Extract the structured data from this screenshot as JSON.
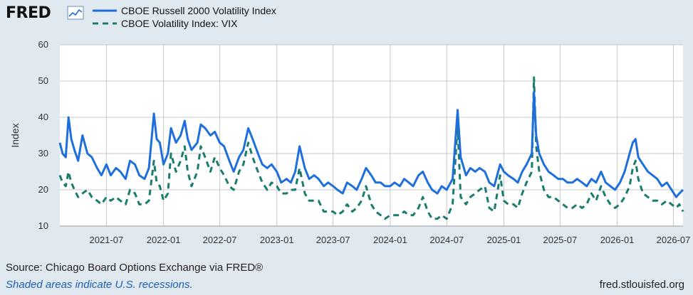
{
  "header": {
    "logo_text": "FRED",
    "logo_mark_icon": "fred-line-chart-icon"
  },
  "footer": {
    "source": "Source: Chicago Board Options Exchange via FRED®",
    "note": "Shaded areas indicate U.S. recessions.",
    "url": "fred.stlouisfed.org"
  },
  "chart_data": {
    "type": "line",
    "title": "",
    "xlabel": "",
    "ylabel": "Index",
    "ylim": [
      10,
      60
    ],
    "yticks": [
      10,
      20,
      30,
      40,
      50,
      60
    ],
    "xlim": [
      "2021-02-01",
      "2026-08-01"
    ],
    "xticks": [
      "2021-07",
      "2022-01",
      "2022-07",
      "2023-01",
      "2023-07",
      "2024-01",
      "2024-07",
      "2025-01",
      "2025-07",
      "2026-01",
      "2026-07"
    ],
    "grid": true,
    "legend_position": "top-left",
    "background": "#ffffff",
    "series": [
      {
        "name": "CBOE Russell 2000 Volatility Index",
        "color": "#1e6fdc",
        "style": "solid",
        "points": [
          [
            "2021-02-01",
            33
          ],
          [
            "2021-02-10",
            30
          ],
          [
            "2021-02-20",
            29
          ],
          [
            "2021-03-01",
            40
          ],
          [
            "2021-03-10",
            34
          ],
          [
            "2021-03-20",
            31
          ],
          [
            "2021-04-01",
            28
          ],
          [
            "2021-04-15",
            35
          ],
          [
            "2021-05-01",
            30
          ],
          [
            "2021-05-15",
            29
          ],
          [
            "2021-06-01",
            26
          ],
          [
            "2021-06-15",
            24
          ],
          [
            "2021-07-01",
            27
          ],
          [
            "2021-07-15",
            24
          ],
          [
            "2021-08-01",
            26
          ],
          [
            "2021-08-15",
            25
          ],
          [
            "2021-09-01",
            23
          ],
          [
            "2021-09-15",
            28
          ],
          [
            "2021-10-01",
            27
          ],
          [
            "2021-10-15",
            24
          ],
          [
            "2021-11-01",
            23
          ],
          [
            "2021-11-15",
            26
          ],
          [
            "2021-12-01",
            41
          ],
          [
            "2021-12-10",
            34
          ],
          [
            "2021-12-20",
            33
          ],
          [
            "2022-01-01",
            27
          ],
          [
            "2022-01-15",
            30
          ],
          [
            "2022-01-25",
            37
          ],
          [
            "2022-02-10",
            33
          ],
          [
            "2022-02-25",
            35
          ],
          [
            "2022-03-10",
            39
          ],
          [
            "2022-03-20",
            34
          ],
          [
            "2022-04-01",
            31
          ],
          [
            "2022-04-20",
            33
          ],
          [
            "2022-05-01",
            38
          ],
          [
            "2022-05-15",
            37
          ],
          [
            "2022-06-01",
            35
          ],
          [
            "2022-06-15",
            36
          ],
          [
            "2022-07-01",
            33
          ],
          [
            "2022-07-15",
            32
          ],
          [
            "2022-08-01",
            28
          ],
          [
            "2022-08-15",
            25
          ],
          [
            "2022-09-01",
            29
          ],
          [
            "2022-09-15",
            31
          ],
          [
            "2022-10-01",
            37
          ],
          [
            "2022-10-15",
            34
          ],
          [
            "2022-11-01",
            30
          ],
          [
            "2022-11-15",
            27
          ],
          [
            "2022-12-01",
            26
          ],
          [
            "2022-12-15",
            27
          ],
          [
            "2023-01-01",
            25
          ],
          [
            "2023-01-15",
            22
          ],
          [
            "2023-02-01",
            23
          ],
          [
            "2023-02-15",
            22
          ],
          [
            "2023-03-01",
            25
          ],
          [
            "2023-03-15",
            32
          ],
          [
            "2023-04-01",
            26
          ],
          [
            "2023-04-15",
            23
          ],
          [
            "2023-05-01",
            24
          ],
          [
            "2023-05-15",
            23
          ],
          [
            "2023-06-01",
            21
          ],
          [
            "2023-06-15",
            22
          ],
          [
            "2023-07-01",
            21
          ],
          [
            "2023-07-15",
            20
          ],
          [
            "2023-08-01",
            19
          ],
          [
            "2023-08-15",
            22
          ],
          [
            "2023-09-01",
            21
          ],
          [
            "2023-09-15",
            20
          ],
          [
            "2023-10-01",
            23
          ],
          [
            "2023-10-15",
            26
          ],
          [
            "2023-11-01",
            24
          ],
          [
            "2023-11-15",
            22
          ],
          [
            "2023-12-01",
            22
          ],
          [
            "2023-12-15",
            21
          ],
          [
            "2024-01-01",
            21
          ],
          [
            "2024-01-15",
            22
          ],
          [
            "2024-02-01",
            21
          ],
          [
            "2024-02-15",
            23
          ],
          [
            "2024-03-01",
            22
          ],
          [
            "2024-03-15",
            21
          ],
          [
            "2024-04-01",
            24
          ],
          [
            "2024-04-15",
            25
          ],
          [
            "2024-05-01",
            22
          ],
          [
            "2024-05-15",
            20
          ],
          [
            "2024-06-01",
            19
          ],
          [
            "2024-06-15",
            21
          ],
          [
            "2024-07-01",
            20
          ],
          [
            "2024-07-20",
            23
          ],
          [
            "2024-08-05",
            42
          ],
          [
            "2024-08-15",
            29
          ],
          [
            "2024-09-01",
            24
          ],
          [
            "2024-09-15",
            26
          ],
          [
            "2024-10-01",
            25
          ],
          [
            "2024-10-15",
            26
          ],
          [
            "2024-11-01",
            25
          ],
          [
            "2024-11-15",
            22
          ],
          [
            "2024-12-01",
            21
          ],
          [
            "2024-12-20",
            27
          ],
          [
            "2025-01-01",
            25
          ],
          [
            "2025-01-15",
            24
          ],
          [
            "2025-02-01",
            23
          ],
          [
            "2025-02-15",
            22
          ],
          [
            "2025-03-01",
            25
          ],
          [
            "2025-03-15",
            27
          ],
          [
            "2025-04-01",
            30
          ],
          [
            "2025-04-08",
            47
          ],
          [
            "2025-04-15",
            35
          ],
          [
            "2025-04-25",
            30
          ],
          [
            "2025-05-10",
            27
          ],
          [
            "2025-05-25",
            25
          ],
          [
            "2025-06-10",
            24
          ],
          [
            "2025-06-25",
            23
          ],
          [
            "2025-07-10",
            23
          ],
          [
            "2025-07-25",
            22
          ],
          [
            "2025-08-10",
            22
          ],
          [
            "2025-08-25",
            23
          ],
          [
            "2025-09-10",
            22
          ],
          [
            "2025-09-25",
            21
          ],
          [
            "2025-10-10",
            23
          ],
          [
            "2025-10-25",
            22
          ],
          [
            "2025-11-10",
            25
          ],
          [
            "2025-11-25",
            22
          ],
          [
            "2025-12-10",
            21
          ],
          [
            "2025-12-25",
            20
          ],
          [
            "2026-01-10",
            22
          ],
          [
            "2026-01-25",
            25
          ],
          [
            "2026-02-10",
            30
          ],
          [
            "2026-02-20",
            33
          ],
          [
            "2026-03-01",
            34
          ],
          [
            "2026-03-10",
            29
          ],
          [
            "2026-03-25",
            27
          ],
          [
            "2026-04-10",
            25
          ],
          [
            "2026-04-25",
            24
          ],
          [
            "2026-05-10",
            23
          ],
          [
            "2026-05-25",
            21
          ],
          [
            "2026-06-10",
            22
          ],
          [
            "2026-06-25",
            20
          ],
          [
            "2026-07-10",
            18
          ],
          [
            "2026-07-20",
            19
          ],
          [
            "2026-08-01",
            20
          ]
        ]
      },
      {
        "name": "CBOE Volatility Index: VIX",
        "color": "#1a7d6b",
        "style": "dashed",
        "points": [
          [
            "2021-02-01",
            24
          ],
          [
            "2021-02-10",
            22
          ],
          [
            "2021-02-20",
            21
          ],
          [
            "2021-03-01",
            25
          ],
          [
            "2021-03-10",
            22
          ],
          [
            "2021-03-20",
            20
          ],
          [
            "2021-04-01",
            18
          ],
          [
            "2021-04-15",
            19
          ],
          [
            "2021-05-01",
            20
          ],
          [
            "2021-05-15",
            18
          ],
          [
            "2021-06-01",
            17
          ],
          [
            "2021-06-15",
            16
          ],
          [
            "2021-07-01",
            18
          ],
          [
            "2021-07-15",
            17
          ],
          [
            "2021-08-01",
            18
          ],
          [
            "2021-08-15",
            17
          ],
          [
            "2021-09-01",
            16
          ],
          [
            "2021-09-15",
            20
          ],
          [
            "2021-10-01",
            19
          ],
          [
            "2021-10-15",
            16
          ],
          [
            "2021-11-01",
            16
          ],
          [
            "2021-11-15",
            17
          ],
          [
            "2021-12-01",
            28
          ],
          [
            "2021-12-10",
            22
          ],
          [
            "2021-12-20",
            21
          ],
          [
            "2022-01-01",
            17
          ],
          [
            "2022-01-15",
            19
          ],
          [
            "2022-01-25",
            30
          ],
          [
            "2022-02-10",
            25
          ],
          [
            "2022-02-25",
            28
          ],
          [
            "2022-03-10",
            32
          ],
          [
            "2022-03-20",
            25
          ],
          [
            "2022-04-01",
            21
          ],
          [
            "2022-04-20",
            25
          ],
          [
            "2022-05-01",
            32
          ],
          [
            "2022-05-15",
            29
          ],
          [
            "2022-06-01",
            25
          ],
          [
            "2022-06-15",
            29
          ],
          [
            "2022-07-01",
            26
          ],
          [
            "2022-07-15",
            24
          ],
          [
            "2022-08-01",
            21
          ],
          [
            "2022-08-15",
            20
          ],
          [
            "2022-09-01",
            25
          ],
          [
            "2022-09-15",
            27
          ],
          [
            "2022-10-01",
            33
          ],
          [
            "2022-10-15",
            29
          ],
          [
            "2022-11-01",
            25
          ],
          [
            "2022-11-15",
            22
          ],
          [
            "2022-12-01",
            20
          ],
          [
            "2022-12-15",
            22
          ],
          [
            "2023-01-01",
            21
          ],
          [
            "2023-01-15",
            19
          ],
          [
            "2023-02-01",
            19
          ],
          [
            "2023-02-15",
            20
          ],
          [
            "2023-03-01",
            20
          ],
          [
            "2023-03-15",
            26
          ],
          [
            "2023-04-01",
            19
          ],
          [
            "2023-04-15",
            17
          ],
          [
            "2023-05-01",
            17
          ],
          [
            "2023-05-15",
            17
          ],
          [
            "2023-06-01",
            14
          ],
          [
            "2023-06-15",
            14
          ],
          [
            "2023-07-01",
            14
          ],
          [
            "2023-07-15",
            13
          ],
          [
            "2023-08-01",
            14
          ],
          [
            "2023-08-15",
            16
          ],
          [
            "2023-09-01",
            14
          ],
          [
            "2023-09-15",
            15
          ],
          [
            "2023-10-01",
            17
          ],
          [
            "2023-10-15",
            21
          ],
          [
            "2023-11-01",
            16
          ],
          [
            "2023-11-15",
            14
          ],
          [
            "2023-12-01",
            13
          ],
          [
            "2023-12-15",
            12
          ],
          [
            "2024-01-01",
            13
          ],
          [
            "2024-01-15",
            13
          ],
          [
            "2024-02-01",
            13
          ],
          [
            "2024-02-15",
            14
          ],
          [
            "2024-03-01",
            13
          ],
          [
            "2024-03-15",
            13
          ],
          [
            "2024-04-01",
            15
          ],
          [
            "2024-04-15",
            18
          ],
          [
            "2024-05-01",
            14
          ],
          [
            "2024-05-15",
            12
          ],
          [
            "2024-06-01",
            12
          ],
          [
            "2024-06-15",
            13
          ],
          [
            "2024-07-01",
            12
          ],
          [
            "2024-07-20",
            16
          ],
          [
            "2024-08-05",
            38
          ],
          [
            "2024-08-15",
            18
          ],
          [
            "2024-09-01",
            16
          ],
          [
            "2024-09-15",
            18
          ],
          [
            "2024-10-01",
            19
          ],
          [
            "2024-10-15",
            20
          ],
          [
            "2024-11-01",
            21
          ],
          [
            "2024-11-15",
            15
          ],
          [
            "2024-12-01",
            14
          ],
          [
            "2024-12-20",
            24
          ],
          [
            "2025-01-01",
            17
          ],
          [
            "2025-01-15",
            16
          ],
          [
            "2025-02-01",
            16
          ],
          [
            "2025-02-15",
            15
          ],
          [
            "2025-03-01",
            19
          ],
          [
            "2025-03-15",
            22
          ],
          [
            "2025-04-01",
            25
          ],
          [
            "2025-04-08",
            51
          ],
          [
            "2025-04-15",
            32
          ],
          [
            "2025-04-25",
            25
          ],
          [
            "2025-05-10",
            20
          ],
          [
            "2025-05-25",
            18
          ],
          [
            "2025-06-10",
            18
          ],
          [
            "2025-06-25",
            17
          ],
          [
            "2025-07-10",
            16
          ],
          [
            "2025-07-25",
            15
          ],
          [
            "2025-08-10",
            15
          ],
          [
            "2025-08-25",
            16
          ],
          [
            "2025-09-10",
            15
          ],
          [
            "2025-09-25",
            16
          ],
          [
            "2025-10-10",
            19
          ],
          [
            "2025-10-25",
            17
          ],
          [
            "2025-11-10",
            21
          ],
          [
            "2025-11-25",
            18
          ],
          [
            "2025-12-10",
            16
          ],
          [
            "2025-12-25",
            15
          ],
          [
            "2026-01-10",
            16
          ],
          [
            "2026-01-25",
            18
          ],
          [
            "2026-02-10",
            21
          ],
          [
            "2026-02-20",
            26
          ],
          [
            "2026-03-01",
            28
          ],
          [
            "2026-03-10",
            23
          ],
          [
            "2026-03-25",
            19
          ],
          [
            "2026-04-10",
            18
          ],
          [
            "2026-04-25",
            17
          ],
          [
            "2026-05-10",
            17
          ],
          [
            "2026-05-25",
            16
          ],
          [
            "2026-06-10",
            17
          ],
          [
            "2026-06-25",
            16
          ],
          [
            "2026-07-10",
            15
          ],
          [
            "2026-07-20",
            16
          ],
          [
            "2026-08-01",
            14
          ]
        ]
      }
    ]
  }
}
